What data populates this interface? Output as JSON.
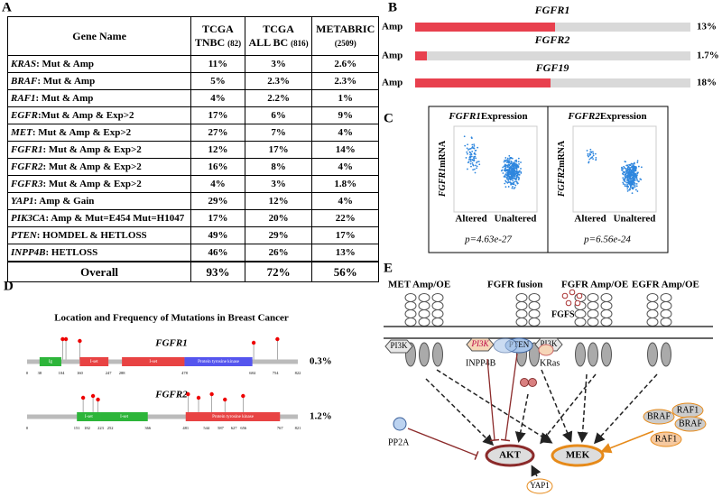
{
  "table_panel": {
    "label": "A",
    "columns": [
      {
        "name": "Gene Name"
      },
      {
        "name": "TCGA",
        "sub": "TNBC",
        "n": "(82)"
      },
      {
        "name": "TCGA",
        "sub": "ALL BC",
        "n": "(816)"
      },
      {
        "name": "METABRIC",
        "n": "(2509)"
      }
    ],
    "rows": [
      {
        "gene": "KRAS",
        "alteration": ": Mut & Amp",
        "values": [
          "11%",
          "3%",
          "2.6%"
        ]
      },
      {
        "gene": "BRAF",
        "alteration": ": Mut & Amp",
        "values": [
          "5%",
          "2.3%",
          "2.3%"
        ]
      },
      {
        "gene": "RAF1",
        "alteration": ": Mut & Amp",
        "values": [
          "4%",
          "2.2%",
          "1%"
        ]
      },
      {
        "gene": "EGFR",
        "alteration": ":Mut & Amp & Exp>2",
        "values": [
          "17%",
          "6%",
          "9%"
        ]
      },
      {
        "gene": "MET",
        "alteration": ": Mut & Amp & Exp>2",
        "values": [
          "27%",
          "7%",
          "4%"
        ]
      },
      {
        "gene": "FGFR1",
        "alteration": ": Mut & Amp & Exp>2",
        "values": [
          "12%",
          "17%",
          "14%"
        ]
      },
      {
        "gene": "FGFR2",
        "alteration": ": Mut & Amp & Exp>2",
        "values": [
          "16%",
          "8%",
          "4%"
        ]
      },
      {
        "gene": "FGFR3",
        "alteration": ": Mut & Amp & Exp>2",
        "values": [
          "4%",
          "3%",
          "1.8%"
        ]
      },
      {
        "gene": "YAP1",
        "alteration": ": Amp & Gain",
        "values": [
          "29%",
          "12%",
          "4%"
        ]
      },
      {
        "gene": "PIK3CA",
        "alteration": ": Amp & Mut=E454 Mut=H1047",
        "values": [
          "17%",
          "20%",
          "22%"
        ]
      },
      {
        "gene": "PTEN",
        "alteration": ": HOMDEL & HETLOSS",
        "values": [
          "49%",
          "29%",
          "17%"
        ]
      },
      {
        "gene": "INPP4B",
        "alteration": ":  HETLOSS",
        "values": [
          "46%",
          "26%",
          "13%"
        ]
      }
    ],
    "overall": {
      "label": "Overall",
      "values": [
        "93%",
        "72%",
        "56%"
      ]
    }
  },
  "oncoprint_panel": {
    "label": "B",
    "alteration": "Amp",
    "genes": [
      {
        "name": "FGFR1",
        "frequency": "13%"
      },
      {
        "name": "FGFR2",
        "frequency": "1.7%"
      },
      {
        "name": "FGF19",
        "frequency": "18%"
      }
    ]
  },
  "expression_panel": {
    "label": "C",
    "plots": [
      {
        "gene": "FGFR1",
        "title": "Expression",
        "ylabel": "mRNA",
        "groups": [
          "Altered",
          "Unaltered"
        ],
        "p": "p=4.63e-27"
      },
      {
        "gene": "FGFR2",
        "title": "Expression",
        "ylabel": "mRNA",
        "groups": [
          "Altered",
          "Unaltered"
        ],
        "p": "p=6.56e-24"
      }
    ]
  },
  "mutation_panel": {
    "label": "D",
    "title": "Location and Frequency of Mutations in Breast Cancer",
    "proteins": [
      {
        "name": "FGFR1",
        "frequency": "0.3%",
        "positions": [
          0,
          38,
          104,
          160,
          247,
          288,
          478,
          684,
          754,
          822
        ],
        "domains": [
          "Ig",
          "I-set",
          "I-set",
          "Protein tyrosine kinase"
        ]
      },
      {
        "name": "FGFR2",
        "frequency": "1.2%",
        "positions": [
          0,
          151,
          182,
          223,
          252,
          366,
          481,
          544,
          587,
          627,
          656,
          767,
          821
        ],
        "domains": [
          "I-set",
          "I-set",
          "Protein tyrosine kinase"
        ]
      }
    ]
  },
  "pathway_panel": {
    "label": "E",
    "receptors": [
      "MET Amp/OE",
      "FGFR fusion",
      "FGFR Amp/OE",
      "EGFR Amp/OE"
    ],
    "ligand": "FGFS",
    "nodes": {
      "pi3k": "PI3K",
      "pten": "PTEN",
      "inpp4b": "INPP4B",
      "kras": "KRas",
      "pp2a": "PP2A",
      "akt": "AKT",
      "mek": "MEK",
      "yap1": "YAP1",
      "braf": "BRAF",
      "raf1": "RAF1"
    }
  }
}
